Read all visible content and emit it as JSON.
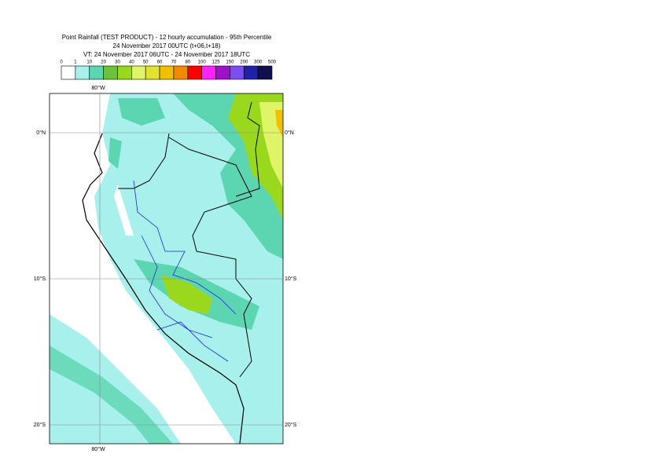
{
  "header": {
    "lines": [
      "Point Rainfall (TEST PRODUCT) - 12 hourly accumulation - 95th Percentile",
      "24 November 2017 00UTC (t+06,t+18)",
      "VT: 24 November 2017 06UTC - 24 November 2017 18UTC"
    ]
  },
  "legend": {
    "labels": [
      "0",
      "1",
      "10",
      "20",
      "30",
      "40",
      "50",
      "60",
      "70",
      "80",
      "100",
      "125",
      "150",
      "200",
      "300",
      "500"
    ],
    "colors": [
      "#ffffff",
      "#a8f0ec",
      "#5cd6b0",
      "#6cc23a",
      "#9ad81e",
      "#e0f468",
      "#e2e232",
      "#f2c000",
      "#f28a00",
      "#ff0000",
      "#ff22ff",
      "#a010c8",
      "#7a4ef0",
      "#2020a8",
      "#10104e"
    ]
  },
  "map": {
    "lon_labels": [
      "80°W",
      "80°W"
    ],
    "lat_labels": [
      "0°N",
      "10°S",
      "20°S"
    ]
  }
}
